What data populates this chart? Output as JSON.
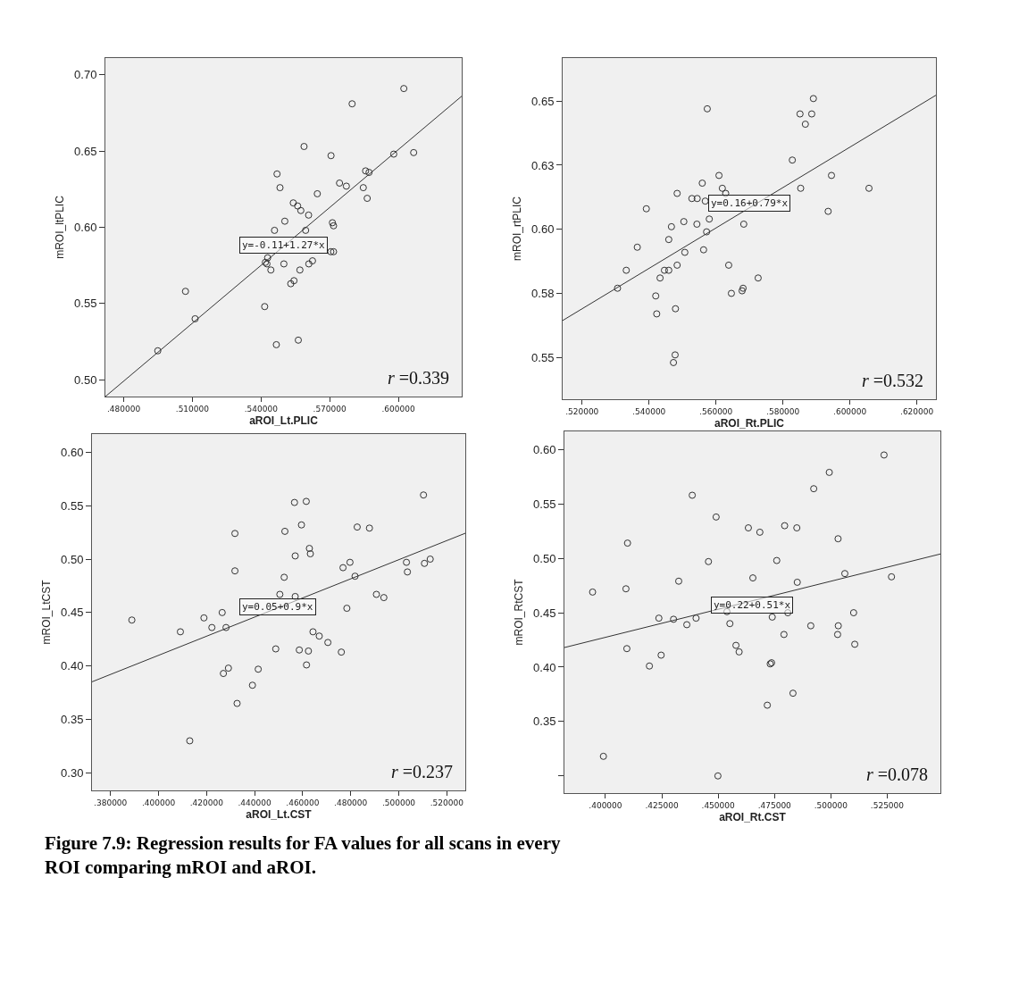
{
  "chart_data": [
    {
      "type": "scatter",
      "xlabel": "aROI_Lt.PLIC",
      "ylabel": "mROI_ltPLIC",
      "xlim": [
        0.472,
        0.6277
      ],
      "ylim": [
        0.489,
        0.711
      ],
      "xticks": [
        {
          "value": 0.48,
          "label": ".480000"
        },
        {
          "value": 0.51,
          "label": ".510000"
        },
        {
          "value": 0.54,
          "label": ".540000"
        },
        {
          "value": 0.57,
          "label": ".570000"
        },
        {
          "value": 0.6,
          "label": ".600000"
        }
      ],
      "yticks": [
        {
          "value": 0.5,
          "label": "0.50"
        },
        {
          "value": 0.55,
          "label": "0.55"
        },
        {
          "value": 0.6,
          "label": "0.60"
        },
        {
          "value": 0.65,
          "label": "0.65"
        },
        {
          "value": 0.7,
          "label": "0.70"
        }
      ],
      "grid": false,
      "series": [
        {
          "type": "scatter",
          "marker": "circle",
          "color": "#333333",
          "x": [
            0.4949,
            0.507,
            0.5112,
            0.5416,
            0.5467,
            0.5563,
            0.5459,
            0.5504,
            0.547,
            0.5483,
            0.5541,
            0.556,
            0.5574,
            0.5608,
            0.5595,
            0.5588,
            0.5646,
            0.5706,
            0.5712,
            0.5717,
            0.5705,
            0.5717,
            0.5798,
            0.5743,
            0.5773,
            0.5847,
            0.5857,
            0.5872,
            0.5864,
            0.598,
            0.6024,
            0.6067,
            0.5429,
            0.5419,
            0.5426,
            0.5443,
            0.55,
            0.5544,
            0.553,
            0.557,
            0.5609,
            0.5625
          ],
          "values": [
            0.519,
            0.558,
            0.54,
            0.548,
            0.523,
            0.526,
            0.598,
            0.604,
            0.635,
            0.626,
            0.616,
            0.614,
            0.611,
            0.608,
            0.598,
            0.653,
            0.622,
            0.647,
            0.603,
            0.601,
            0.584,
            0.584,
            0.681,
            0.629,
            0.627,
            0.626,
            0.637,
            0.636,
            0.619,
            0.648,
            0.691,
            0.649,
            0.58,
            0.577,
            0.576,
            0.572,
            0.576,
            0.565,
            0.563,
            0.572,
            0.576,
            0.578
          ]
        },
        {
          "type": "line",
          "marker": "none",
          "color": "#333333",
          "x": [
            0.472,
            0.6277
          ],
          "values": [
            0.489,
            0.686
          ]
        }
      ],
      "annotations": [
        "r =0.339",
        {
          "text": "y=-0.11+1.27*x",
          "x": 0.5497,
          "y": 0.588
        }
      ]
    },
    {
      "type": "scatter",
      "xlabel": "aROI_Rt.PLIC",
      "ylabel": "mROI_rtPLIC",
      "xlim": [
        0.5142,
        0.6257
      ],
      "ylim": [
        0.5337,
        0.6668
      ],
      "xticks": [
        {
          "value": 0.52,
          "label": ".520000"
        },
        {
          "value": 0.54,
          "label": ".540000"
        },
        {
          "value": 0.56,
          "label": ".560000"
        },
        {
          "value": 0.58,
          "label": ".580000"
        },
        {
          "value": 0.6,
          "label": ".600000"
        },
        {
          "value": 0.62,
          "label": ".620000"
        }
      ],
      "yticks": [
        {
          "value": 0.55,
          "label": "0.55"
        },
        {
          "value": 0.575,
          "label": "0.58"
        },
        {
          "value": 0.6,
          "label": "0.60"
        },
        {
          "value": 0.625,
          "label": "0.63"
        },
        {
          "value": 0.65,
          "label": "0.65"
        }
      ],
      "grid": false,
      "series": [
        {
          "type": "scatter",
          "marker": "circle",
          "color": "#333333",
          "x": [
            0.5306,
            0.5332,
            0.5365,
            0.5392,
            0.542,
            0.5423,
            0.5433,
            0.5446,
            0.5459,
            0.5459,
            0.5467,
            0.5484,
            0.5484,
            0.5479,
            0.5478,
            0.5473,
            0.5504,
            0.5507,
            0.5528,
            0.5543,
            0.5544,
            0.5559,
            0.5563,
            0.5574,
            0.5572,
            0.558,
            0.5568,
            0.5609,
            0.5619,
            0.5629,
            0.5638,
            0.5646,
            0.5678,
            0.5681,
            0.5683,
            0.5726,
            0.5828,
            0.5851,
            0.5853,
            0.5867,
            0.5886,
            0.5891,
            0.5935,
            0.5945,
            0.6057
          ],
          "values": [
            0.577,
            0.584,
            0.593,
            0.608,
            0.574,
            0.567,
            0.581,
            0.584,
            0.584,
            0.596,
            0.601,
            0.586,
            0.614,
            0.569,
            0.551,
            0.548,
            0.603,
            0.591,
            0.612,
            0.602,
            0.612,
            0.618,
            0.592,
            0.647,
            0.599,
            0.604,
            0.611,
            0.621,
            0.616,
            0.614,
            0.586,
            0.575,
            0.576,
            0.577,
            0.602,
            0.581,
            0.627,
            0.645,
            0.616,
            0.641,
            0.645,
            0.651,
            0.607,
            0.621,
            0.616
          ]
        },
        {
          "type": "line",
          "marker": "none",
          "color": "#333333",
          "x": [
            0.5142,
            0.6257
          ],
          "values": [
            0.5644,
            0.6523
          ]
        }
      ],
      "annotations": [
        "r =0.532",
        {
          "text": "y=0.16+0.79*x",
          "x": 0.5699,
          "y": 0.6101
        }
      ]
    },
    {
      "type": "scatter",
      "xlabel": "aROI_Lt.CST",
      "ylabel": "mROI_LtCST",
      "xlim": [
        0.3723,
        0.5277
      ],
      "ylim": [
        0.2836,
        0.617
      ],
      "xticks": [
        {
          "value": 0.38,
          "label": ".380000"
        },
        {
          "value": 0.4,
          "label": ".400000"
        },
        {
          "value": 0.42,
          "label": ".420000"
        },
        {
          "value": 0.44,
          "label": ".440000"
        },
        {
          "value": 0.46,
          "label": ".460000"
        },
        {
          "value": 0.48,
          "label": ".480000"
        },
        {
          "value": 0.5,
          "label": ".500000"
        },
        {
          "value": 0.52,
          "label": ".520000"
        }
      ],
      "yticks": [
        {
          "value": 0.3,
          "label": "0.30"
        },
        {
          "value": 0.35,
          "label": "0.35"
        },
        {
          "value": 0.4,
          "label": "0.40"
        },
        {
          "value": 0.45,
          "label": "0.45"
        },
        {
          "value": 0.5,
          "label": "0.50"
        },
        {
          "value": 0.55,
          "label": "0.55"
        },
        {
          "value": 0.6,
          "label": "0.60"
        }
      ],
      "grid": false,
      "series": [
        {
          "type": "scatter",
          "marker": "circle",
          "color": "#333333",
          "x": [
            0.3889,
            0.4091,
            0.413,
            0.4189,
            0.4222,
            0.4265,
            0.4281,
            0.427,
            0.4291,
            0.4318,
            0.4318,
            0.4327,
            0.4391,
            0.4415,
            0.4488,
            0.4505,
            0.4523,
            0.4526,
            0.4566,
            0.4569,
            0.4569,
            0.4586,
            0.4595,
            0.4615,
            0.4616,
            0.4624,
            0.4628,
            0.4632,
            0.4643,
            0.4669,
            0.4705,
            0.4761,
            0.4768,
            0.4784,
            0.4797,
            0.4818,
            0.4827,
            0.4878,
            0.4907,
            0.4938,
            0.5032,
            0.5036,
            0.5103,
            0.5107,
            0.5131
          ],
          "values": [
            0.443,
            0.432,
            0.33,
            0.445,
            0.436,
            0.45,
            0.436,
            0.393,
            0.398,
            0.524,
            0.489,
            0.365,
            0.382,
            0.397,
            0.416,
            0.467,
            0.483,
            0.526,
            0.553,
            0.503,
            0.465,
            0.415,
            0.532,
            0.554,
            0.401,
            0.414,
            0.51,
            0.505,
            0.432,
            0.428,
            0.422,
            0.413,
            0.492,
            0.454,
            0.497,
            0.484,
            0.53,
            0.529,
            0.467,
            0.464,
            0.497,
            0.488,
            0.56,
            0.496,
            0.5
          ]
        },
        {
          "type": "line",
          "marker": "none",
          "color": "#333333",
          "x": [
            0.3723,
            0.5277
          ],
          "values": [
            0.3852,
            0.5242
          ]
        }
      ],
      "annotations": [
        "r =0.237",
        {
          "text": "y=0.05+0.9*x",
          "x": 0.4497,
          "y": 0.4549
        }
      ]
    },
    {
      "type": "scatter",
      "xlabel": "aROI_Rt.CST",
      "ylabel": "mROI_RtCST",
      "xlim": [
        0.3818,
        0.5486
      ],
      "ylim": [
        0.2842,
        0.6167
      ],
      "xticks": [
        {
          "value": 0.4,
          "label": ".400000"
        },
        {
          "value": 0.425,
          "label": ".425000"
        },
        {
          "value": 0.45,
          "label": ".450000"
        },
        {
          "value": 0.475,
          "label": ".475000"
        },
        {
          "value": 0.5,
          "label": ".500000"
        },
        {
          "value": 0.525,
          "label": ".525000"
        }
      ],
      "yticks": [
        {
          "value": 0.3,
          "label": null
        },
        {
          "value": 0.35,
          "label": "0.35"
        },
        {
          "value": 0.4,
          "label": "0.40"
        },
        {
          "value": 0.45,
          "label": "0.45"
        },
        {
          "value": 0.5,
          "label": "0.50"
        },
        {
          "value": 0.55,
          "label": "0.55"
        },
        {
          "value": 0.6,
          "label": "0.60"
        }
      ],
      "grid": false,
      "series": [
        {
          "type": "scatter",
          "marker": "circle",
          "color": "#333333",
          "x": [
            0.3943,
            0.3991,
            0.4098,
            0.4091,
            0.4095,
            0.4195,
            0.4237,
            0.4247,
            0.4302,
            0.4325,
            0.4361,
            0.4385,
            0.4402,
            0.4457,
            0.4491,
            0.4499,
            0.4539,
            0.4552,
            0.4579,
            0.4593,
            0.4634,
            0.4654,
            0.4685,
            0.4718,
            0.4731,
            0.4737,
            0.474,
            0.476,
            0.4792,
            0.4795,
            0.4809,
            0.4832,
            0.4849,
            0.4851,
            0.4911,
            0.4924,
            0.4993,
            0.5032,
            0.5033,
            0.503,
            0.5062,
            0.5101,
            0.5106,
            0.5236,
            0.5269
          ],
          "values": [
            0.469,
            0.318,
            0.514,
            0.472,
            0.417,
            0.401,
            0.445,
            0.411,
            0.444,
            0.479,
            0.439,
            0.558,
            0.445,
            0.497,
            0.538,
            0.3,
            0.451,
            0.44,
            0.42,
            0.414,
            0.528,
            0.482,
            0.524,
            0.365,
            0.403,
            0.404,
            0.446,
            0.498,
            0.43,
            0.53,
            0.45,
            0.376,
            0.528,
            0.478,
            0.438,
            0.564,
            0.579,
            0.518,
            0.438,
            0.43,
            0.486,
            0.45,
            0.421,
            0.595,
            0.483
          ]
        },
        {
          "type": "line",
          "marker": "none",
          "color": "#333333",
          "x": [
            0.3818,
            0.5486
          ],
          "values": [
            0.418,
            0.504
          ]
        }
      ],
      "annotations": [
        "r =0.078",
        {
          "text": "y=0.22+0.51*x",
          "x": 0.4651,
          "y": 0.457
        },
        "Figure 7.9: Regression results for FA values for all scans in every ROI comparing mROI and aROI."
      ]
    }
  ]
}
